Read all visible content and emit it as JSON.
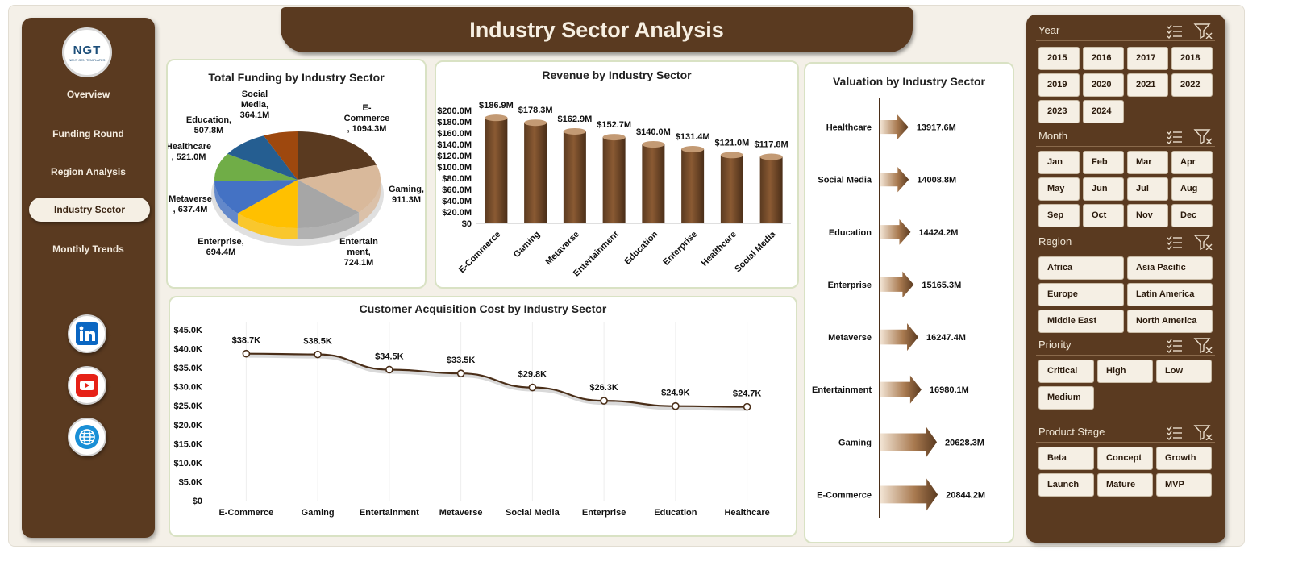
{
  "header": {
    "title": "Industry Sector Analysis"
  },
  "logo": {
    "text": "NGT",
    "subtext": "NEXT GEN TEMPLATES"
  },
  "nav": {
    "items": [
      {
        "label": "Overview"
      },
      {
        "label": "Funding Round"
      },
      {
        "label": "Region Analysis"
      },
      {
        "label": "Industry Sector",
        "active": true
      },
      {
        "label": "Monthly Trends"
      }
    ]
  },
  "social": [
    {
      "icon": "linkedin-icon",
      "color": "#0a66c2"
    },
    {
      "icon": "youtube-icon",
      "color": "#e62117"
    },
    {
      "icon": "globe-icon",
      "color": "#1a8fd6"
    }
  ],
  "colors": {
    "brown": "#5a3a20",
    "cream": "#f5efe4",
    "bar": "#7a4f2c"
  },
  "chart_data": [
    {
      "type": "pie",
      "title": "Total Funding by Industry Sector",
      "slices": [
        {
          "label": "E-Commerce",
          "text": "E-\nCommerce\n, 1094.3M",
          "value": 1094.3,
          "color": "#5a3a20"
        },
        {
          "label": "Gaming",
          "text": "Gaming,\n911.3M",
          "value": 911.3,
          "color": "#d9b99b"
        },
        {
          "label": "Entertainment",
          "text": "Entertain\nment,\n724.1M",
          "value": 724.1,
          "color": "#a6a6a6"
        },
        {
          "label": "Enterprise",
          "text": "Enterprise,\n694.4M",
          "value": 694.4,
          "color": "#ffc000"
        },
        {
          "label": "Metaverse",
          "text": "Metaverse\n, 637.4M",
          "value": 637.4,
          "color": "#4472c4"
        },
        {
          "label": "Healthcare",
          "text": "Healthcare\n, 521.0M",
          "value": 521.0,
          "color": "#70ad47"
        },
        {
          "label": "Education",
          "text": "Education,\n507.8M",
          "value": 507.8,
          "color": "#255e91"
        },
        {
          "label": "Social Media",
          "text": "Social\nMedia,\n364.1M",
          "value": 364.1,
          "color": "#9e480e"
        }
      ]
    },
    {
      "type": "bar",
      "title": "Revenue  by Industry Sector",
      "categories": [
        "E-Commerce",
        "Gaming",
        "Metaverse",
        "Entertainment",
        "Education",
        "Enterprise",
        "Healthcare",
        "Social Media"
      ],
      "values": [
        186.9,
        178.3,
        162.9,
        152.7,
        140.0,
        131.4,
        121.0,
        117.8
      ],
      "value_labels": [
        "$186.9M",
        "$178.3M",
        "$162.9M",
        "$152.7M",
        "$140.0M",
        "$131.4M",
        "$121.0M",
        "$117.8M"
      ],
      "y_ticks": [
        "$200.0M",
        "$180.0M",
        "$160.0M",
        "$140.0M",
        "$120.0M",
        "$100.0M",
        "$80.0M",
        "$60.0M",
        "$40.0M",
        "$20.0M",
        "$0"
      ],
      "ylim": [
        0,
        200
      ]
    },
    {
      "type": "line",
      "title": "Customer Acquisition Cost by Industry Sector",
      "categories": [
        "E-Commerce",
        "Gaming",
        "Entertainment",
        "Metaverse",
        "Social Media",
        "Enterprise",
        "Education",
        "Healthcare"
      ],
      "values": [
        38.7,
        38.5,
        34.5,
        33.5,
        29.8,
        26.3,
        24.9,
        24.7
      ],
      "value_labels": [
        "$38.7K",
        "$38.5K",
        "$34.5K",
        "$33.5K",
        "$29.8K",
        "$26.3K",
        "$24.9K",
        "$24.7K"
      ],
      "y_ticks": [
        "$45.0K",
        "$40.0K",
        "$35.0K",
        "$30.0K",
        "$25.0K",
        "$20.0K",
        "$15.0K",
        "$10.0K",
        "$5.0K",
        "$0"
      ],
      "ylim": [
        0,
        45
      ]
    },
    {
      "type": "bar",
      "orientation": "horizontal",
      "title": "Valuation by Industry Sector",
      "categories": [
        "Healthcare",
        "Social Media",
        "Education",
        "Enterprise",
        "Metaverse",
        "Entertainment",
        "Gaming",
        "E-Commerce"
      ],
      "values": [
        13917.6,
        14008.8,
        14424.2,
        15165.3,
        16247.4,
        16980.1,
        20628.3,
        20844.2
      ],
      "value_labels": [
        "13917.6M",
        "14008.8M",
        "14424.2M",
        "15165.3M",
        "16247.4M",
        "16980.1M",
        "20628.3M",
        "20844.2M"
      ]
    }
  ],
  "filters": {
    "year": {
      "title": "Year",
      "options": [
        "2015",
        "2016",
        "2017",
        "2018",
        "2019",
        "2020",
        "2021",
        "2022",
        "2023",
        "2024"
      ]
    },
    "month": {
      "title": "Month",
      "options": [
        "Jan",
        "Feb",
        "Mar",
        "Apr",
        "May",
        "Jun",
        "Jul",
        "Aug",
        "Sep",
        "Oct",
        "Nov",
        "Dec"
      ]
    },
    "region": {
      "title": "Region",
      "options": [
        "Africa",
        "Asia Pacific",
        "Europe",
        "Latin America",
        "Middle East",
        "North America"
      ]
    },
    "priority": {
      "title": "Priority",
      "options": [
        "Critical",
        "High",
        "Low",
        "Medium"
      ]
    },
    "stage": {
      "title": "Product Stage",
      "options": [
        "Beta",
        "Concept",
        "Growth",
        "Launch",
        "Mature",
        "MVP"
      ]
    }
  }
}
